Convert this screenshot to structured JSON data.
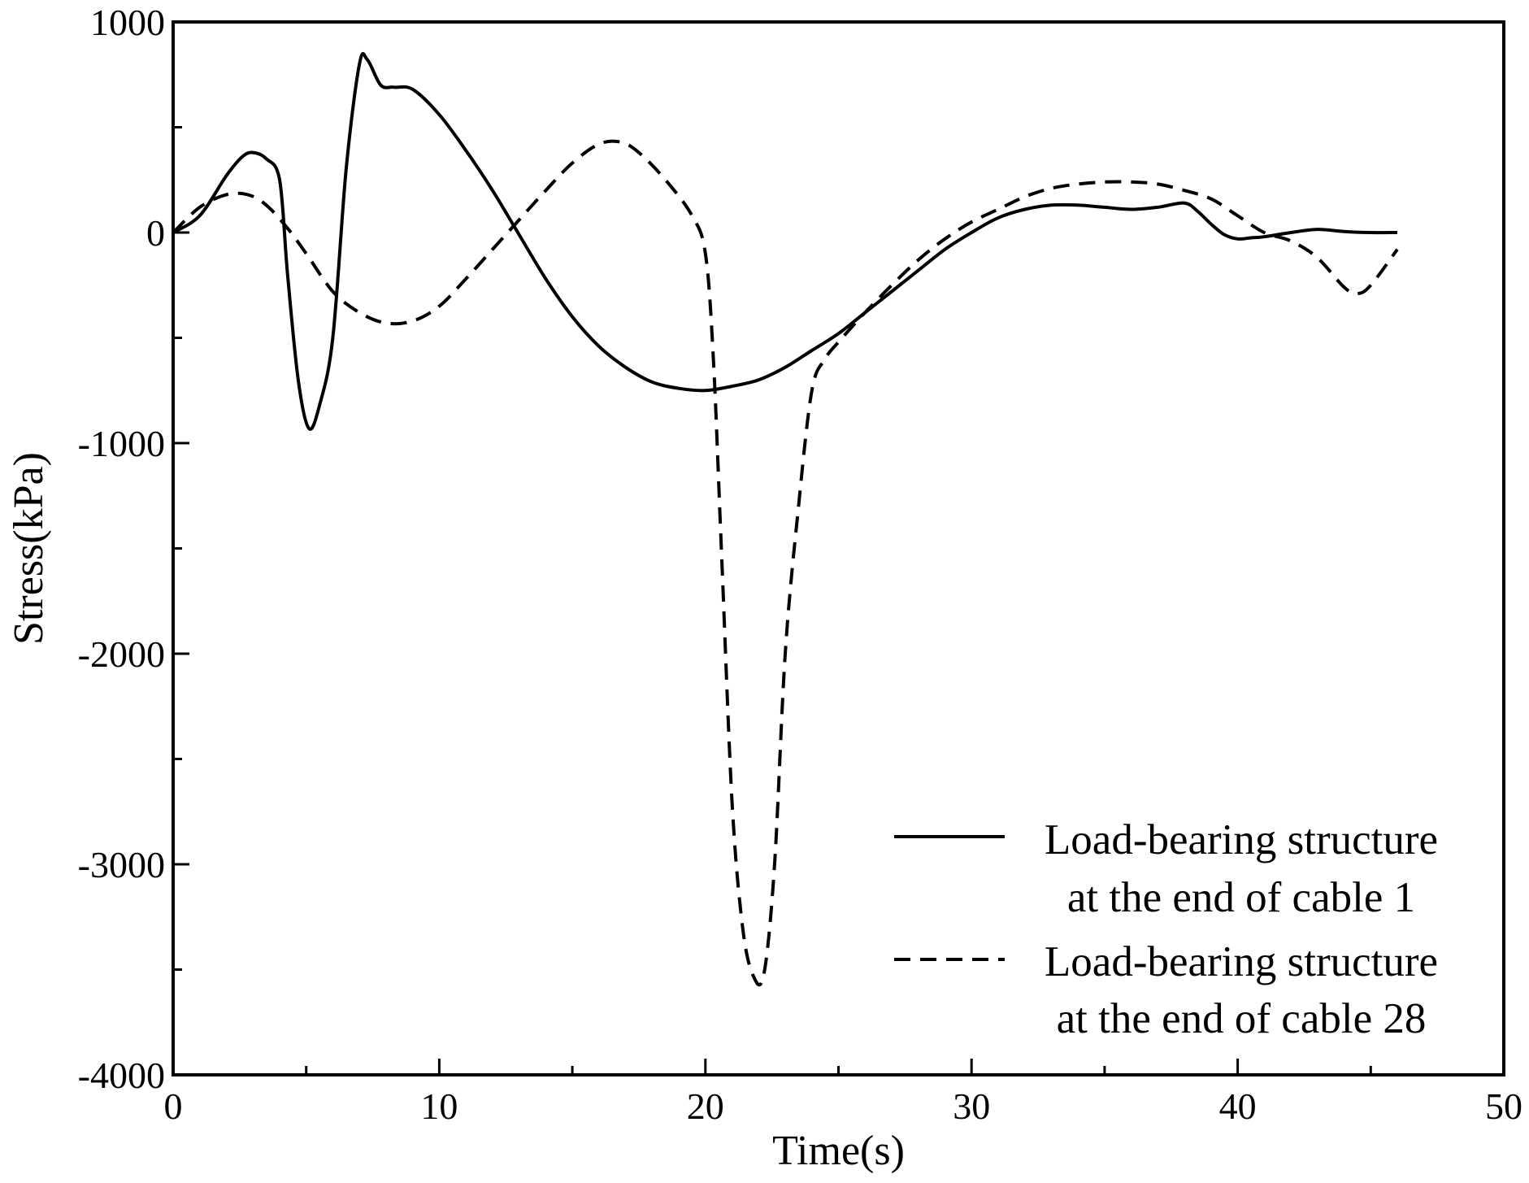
{
  "chart_data": {
    "type": "line",
    "title": "",
    "xlabel": "Time(s)",
    "ylabel": "Stress(kPa)",
    "xlim": [
      0,
      50
    ],
    "ylim": [
      -4000,
      1000
    ],
    "xticks": [
      0,
      10,
      20,
      30,
      40,
      50
    ],
    "xtick_labels": [
      "0",
      "10",
      "20",
      "30",
      "40",
      "50"
    ],
    "yticks": [
      1000,
      0,
      -1000,
      -2000,
      -3000,
      -4000
    ],
    "ytick_labels": [
      "1000",
      "0",
      "-1000",
      "-2000",
      "-3000",
      "-4000"
    ],
    "grid": false,
    "legend_position": "bottom-right",
    "series": [
      {
        "name": "Load-bearing structure at the end of cable 1",
        "legend_lines": [
          "Load-bearing structure",
          "at the end of cable 1"
        ],
        "style": "solid",
        "x": [
          0,
          1,
          2,
          2.6,
          3,
          3.5,
          4,
          4.3,
          4.7,
          5.1,
          5.5,
          6,
          6.5,
          7,
          7.3,
          7.8,
          8.3,
          9,
          10,
          11,
          12,
          13,
          14,
          15,
          16,
          17,
          18,
          19,
          20,
          21,
          22,
          23,
          24,
          25,
          26,
          27,
          28,
          29,
          30,
          31,
          32,
          33,
          34,
          35,
          36,
          37,
          38,
          38.5,
          39,
          39.5,
          40,
          40.5,
          41,
          42,
          43,
          44,
          45,
          46
        ],
        "y": [
          0,
          80,
          270,
          360,
          380,
          350,
          250,
          -200,
          -700,
          -930,
          -820,
          -500,
          300,
          800,
          820,
          700,
          690,
          680,
          560,
          390,
          200,
          -10,
          -220,
          -400,
          -540,
          -640,
          -710,
          -740,
          -750,
          -730,
          -700,
          -640,
          -560,
          -480,
          -380,
          -280,
          -180,
          -80,
          0,
          70,
          110,
          130,
          130,
          120,
          110,
          120,
          140,
          100,
          40,
          -10,
          -30,
          -25,
          -20,
          0,
          15,
          5,
          0,
          0
        ]
      },
      {
        "name": "Load-bearing structure at the end of cable 28",
        "legend_lines": [
          "Load-bearing structure",
          "at the end of cable 28"
        ],
        "style": "dashed",
        "x": [
          0,
          1,
          2,
          2.8,
          3.5,
          4.3,
          5,
          6,
          7,
          8,
          9,
          10,
          11,
          12,
          13,
          14,
          15,
          16,
          16.8,
          17.5,
          18.5,
          19.5,
          20,
          20.3,
          20.6,
          21,
          21.4,
          21.8,
          22.2,
          22.6,
          23,
          23.5,
          24,
          24.5,
          25,
          26,
          27,
          28,
          29,
          30,
          31,
          32,
          33,
          34,
          35,
          36,
          37,
          38,
          39,
          40,
          41,
          42,
          43,
          44,
          44.5,
          45,
          46
        ],
        "y": [
          0,
          120,
          180,
          180,
          130,
          20,
          -100,
          -280,
          -380,
          -430,
          -420,
          -350,
          -220,
          -80,
          60,
          200,
          330,
          420,
          430,
          380,
          250,
          80,
          -100,
          -600,
          -1500,
          -2700,
          -3300,
          -3530,
          -3520,
          -3000,
          -2000,
          -1300,
          -750,
          -600,
          -520,
          -380,
          -250,
          -130,
          -30,
          50,
          110,
          170,
          210,
          230,
          240,
          240,
          230,
          200,
          160,
          80,
          0,
          -40,
          -120,
          -260,
          -290,
          -250,
          -80
        ]
      }
    ]
  }
}
